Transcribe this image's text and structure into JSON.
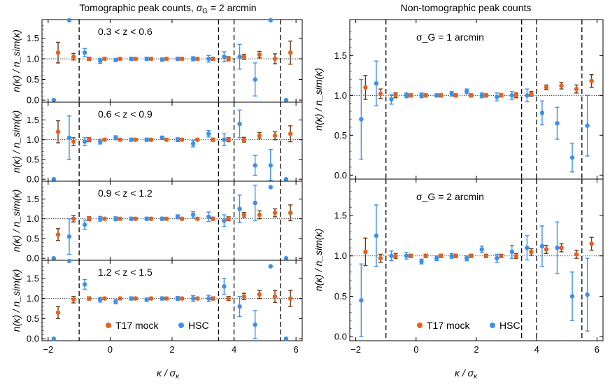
{
  "figure": {
    "left_title": "Tomographic peak counts, σ_G = 2 arcmin",
    "right_title": "Non-tomographic peak counts",
    "ylabel": "n(κ) / n_sim(κ)",
    "xlabel": "κ / σ_κ",
    "legend": {
      "t17": "T17 mock",
      "hsc": "HSC"
    }
  },
  "colors": {
    "t17": "#e8601c",
    "t17_err": "#6b3a1a",
    "hsc": "#3f8fe6"
  },
  "chart_data": [
    {
      "type": "scatter",
      "panel": "tomo-1",
      "annotation": "0.3 < z < 0.6",
      "xlim": [
        -2.2,
        6.2
      ],
      "ylim": [
        -0.05,
        1.95
      ],
      "yticks": [
        0.0,
        0.5,
        1.0,
        1.5
      ],
      "xticks": [
        -2,
        0,
        2,
        4,
        6
      ],
      "vlines": [
        -1,
        3.5,
        4,
        5.5
      ],
      "series": [
        {
          "name": "T17 mock",
          "x": [
            -1.75,
            -1.25,
            -0.75,
            -0.25,
            0.25,
            0.75,
            1.25,
            1.75,
            2.25,
            2.75,
            3.25,
            3.75,
            4.25,
            4.75,
            5.25,
            5.75
          ],
          "y": [
            1.15,
            1.05,
            1.0,
            1.0,
            1.0,
            1.0,
            1.0,
            1.0,
            1.0,
            1.0,
            1.0,
            1.0,
            1.05,
            1.1,
            1.0,
            1.15
          ],
          "err": [
            0.25,
            0.08,
            0.04,
            0.03,
            0.03,
            0.03,
            0.03,
            0.03,
            0.03,
            0.03,
            0.04,
            0.05,
            0.06,
            0.08,
            0.12,
            0.28
          ]
        },
        {
          "name": "HSC",
          "x": [
            -1.75,
            -1.25,
            -0.75,
            -0.25,
            0.25,
            0.75,
            1.25,
            1.75,
            2.25,
            2.75,
            3.25,
            3.75,
            4.25,
            4.75,
            5.25,
            5.75
          ],
          "y": [
            0.0,
            1.95,
            1.15,
            0.95,
            0.97,
            1.0,
            1.0,
            0.98,
            1.0,
            1.0,
            1.0,
            1.05,
            1.05,
            0.5,
            1.95,
            0.0
          ],
          "err": [
            0.0,
            0.0,
            0.1,
            0.06,
            0.04,
            0.04,
            0.04,
            0.04,
            0.04,
            0.05,
            0.08,
            0.12,
            0.3,
            0.4,
            0.0,
            0.0
          ]
        }
      ]
    },
    {
      "type": "scatter",
      "panel": "tomo-2",
      "annotation": "0.6 < z < 0.9",
      "xlim": [
        -2.2,
        6.2
      ],
      "ylim": [
        -0.05,
        1.95
      ],
      "yticks": [
        0.0,
        0.5,
        1.0,
        1.5
      ],
      "xticks": [
        -2,
        0,
        2,
        4,
        6
      ],
      "vlines": [
        -1,
        3.5,
        4,
        5.5
      ],
      "series": [
        {
          "name": "T17 mock",
          "x": [
            -1.75,
            -1.25,
            -0.75,
            -0.25,
            0.25,
            0.75,
            1.25,
            1.75,
            2.25,
            2.75,
            3.25,
            3.75,
            4.25,
            4.75,
            5.25,
            5.75
          ],
          "y": [
            1.2,
            0.95,
            1.0,
            1.0,
            1.0,
            1.0,
            1.0,
            1.0,
            1.0,
            1.0,
            1.0,
            1.0,
            1.0,
            1.1,
            1.1,
            1.15
          ],
          "err": [
            0.28,
            0.1,
            0.05,
            0.03,
            0.03,
            0.03,
            0.03,
            0.03,
            0.03,
            0.03,
            0.04,
            0.05,
            0.06,
            0.08,
            0.1,
            0.2
          ]
        },
        {
          "name": "HSC",
          "x": [
            -1.75,
            -1.25,
            -0.75,
            -0.25,
            0.25,
            0.75,
            1.25,
            1.75,
            2.25,
            2.75,
            3.25,
            3.75,
            4.25,
            4.75,
            5.25,
            5.75
          ],
          "y": [
            0.0,
            1.05,
            0.95,
            0.95,
            1.05,
            1.0,
            1.0,
            1.05,
            1.0,
            0.9,
            1.15,
            1.0,
            1.4,
            0.35,
            0.35,
            0.0
          ],
          "err": [
            0.0,
            0.55,
            0.1,
            0.06,
            0.05,
            0.04,
            0.04,
            0.04,
            0.05,
            0.08,
            0.08,
            0.15,
            0.35,
            0.25,
            0.4,
            0.0
          ]
        }
      ]
    },
    {
      "type": "scatter",
      "panel": "tomo-3",
      "annotation": "0.9 < z < 1.2",
      "xlim": [
        -2.2,
        6.2
      ],
      "ylim": [
        -0.05,
        1.95
      ],
      "yticks": [
        0.0,
        0.5,
        1.0,
        1.5
      ],
      "xticks": [
        -2,
        0,
        2,
        4,
        6
      ],
      "vlines": [
        -1,
        3.5,
        4,
        5.5
      ],
      "series": [
        {
          "name": "T17 mock",
          "x": [
            -1.75,
            -1.25,
            -0.75,
            -0.25,
            0.25,
            0.75,
            1.25,
            1.75,
            2.25,
            2.75,
            3.25,
            3.75,
            4.25,
            4.75,
            5.25,
            5.75
          ],
          "y": [
            0.6,
            1.0,
            1.0,
            1.0,
            1.0,
            1.0,
            1.0,
            1.0,
            1.0,
            1.0,
            1.0,
            1.0,
            1.1,
            1.1,
            1.15,
            1.15
          ],
          "err": [
            0.15,
            0.08,
            0.05,
            0.03,
            0.03,
            0.03,
            0.03,
            0.03,
            0.03,
            0.03,
            0.04,
            0.05,
            0.06,
            0.1,
            0.1,
            0.2
          ]
        },
        {
          "name": "HSC",
          "x": [
            -1.75,
            -1.25,
            -0.75,
            -0.25,
            0.25,
            0.75,
            1.25,
            1.75,
            2.25,
            2.75,
            3.25,
            3.75,
            4.25,
            4.75,
            5.25,
            5.75
          ],
          "y": [
            0.0,
            0.55,
            0.85,
            1.0,
            1.0,
            1.0,
            1.0,
            1.0,
            1.05,
            1.1,
            1.05,
            0.95,
            1.25,
            1.4,
            1.8,
            0.0
          ],
          "err": [
            0.0,
            0.45,
            0.12,
            0.06,
            0.05,
            0.04,
            0.04,
            0.04,
            0.05,
            0.08,
            0.12,
            0.15,
            0.35,
            0.45,
            0.0,
            0.0
          ]
        }
      ]
    },
    {
      "type": "scatter",
      "panel": "tomo-4",
      "annotation": "1.2 < z < 1.5",
      "xlim": [
        -2.2,
        6.2
      ],
      "ylim": [
        -0.05,
        1.95
      ],
      "yticks": [
        0.0,
        0.5,
        1.0,
        1.5
      ],
      "xticks": [
        -2,
        0,
        2,
        4,
        6
      ],
      "vlines": [
        -1,
        3.5,
        4,
        5.5
      ],
      "series": [
        {
          "name": "T17 mock",
          "x": [
            -1.75,
            -1.25,
            -0.75,
            -0.25,
            0.25,
            0.75,
            1.25,
            1.75,
            2.25,
            2.75,
            3.25,
            3.75,
            4.25,
            4.75,
            5.25,
            5.75
          ],
          "y": [
            0.65,
            0.97,
            1.0,
            1.0,
            1.0,
            1.0,
            1.0,
            1.0,
            1.0,
            1.0,
            1.0,
            1.0,
            1.05,
            1.1,
            1.05,
            1.0
          ],
          "err": [
            0.15,
            0.08,
            0.04,
            0.03,
            0.03,
            0.03,
            0.03,
            0.03,
            0.03,
            0.03,
            0.04,
            0.05,
            0.08,
            0.1,
            0.15,
            0.2
          ]
        },
        {
          "name": "HSC",
          "x": [
            -1.75,
            -1.25,
            -0.75,
            -0.25,
            0.25,
            0.75,
            1.25,
            1.75,
            2.25,
            2.75,
            3.25,
            3.75,
            4.25,
            4.75,
            5.25,
            5.75
          ],
          "y": [
            0.0,
            1.95,
            1.35,
            0.97,
            0.92,
            1.0,
            0.97,
            1.0,
            1.0,
            1.0,
            1.0,
            1.3,
            0.8,
            0.35,
            1.8,
            0.0
          ],
          "err": [
            0.0,
            0.0,
            0.12,
            0.06,
            0.05,
            0.04,
            0.04,
            0.04,
            0.05,
            0.07,
            0.08,
            0.2,
            0.25,
            0.35,
            0.0,
            0.0
          ]
        }
      ]
    },
    {
      "type": "scatter",
      "panel": "nontomo-1",
      "annotation": "σ_G = 1 arcmin",
      "xlim": [
        -2.2,
        6.2
      ],
      "ylim": [
        -0.05,
        1.95
      ],
      "yticks": [
        0.0,
        0.5,
        1.0,
        1.5
      ],
      "xticks": [
        -2,
        0,
        2,
        4,
        6
      ],
      "vlines": [
        -1,
        3.5,
        4,
        5.5
      ],
      "series": [
        {
          "name": "T17 mock",
          "x": [
            -1.75,
            -1.25,
            -0.75,
            -0.25,
            0.25,
            0.75,
            1.25,
            1.75,
            2.25,
            2.75,
            3.25,
            3.75,
            4.25,
            4.75,
            5.25,
            5.75
          ],
          "y": [
            1.1,
            1.02,
            1.0,
            1.0,
            1.0,
            1.0,
            1.0,
            1.0,
            1.0,
            1.0,
            1.0,
            1.02,
            1.1,
            1.12,
            1.08,
            1.18
          ],
          "err": [
            0.15,
            0.06,
            0.03,
            0.02,
            0.02,
            0.02,
            0.02,
            0.02,
            0.02,
            0.02,
            0.03,
            0.03,
            0.03,
            0.04,
            0.05,
            0.08
          ]
        },
        {
          "name": "HSC",
          "x": [
            -1.75,
            -1.25,
            -0.75,
            -0.25,
            0.25,
            0.75,
            1.25,
            1.75,
            2.25,
            2.75,
            3.25,
            3.75,
            4.25,
            4.75,
            5.25,
            5.75
          ],
          "y": [
            0.7,
            1.15,
            0.95,
            1.0,
            1.0,
            1.0,
            1.02,
            1.05,
            1.0,
            0.98,
            1.0,
            1.0,
            0.78,
            0.65,
            0.22,
            0.62
          ],
          "err": [
            0.5,
            0.28,
            0.06,
            0.03,
            0.03,
            0.02,
            0.03,
            0.03,
            0.03,
            0.05,
            0.05,
            0.08,
            0.15,
            0.2,
            0.18,
            0.38
          ]
        }
      ]
    },
    {
      "type": "scatter",
      "panel": "nontomo-2",
      "annotation": "σ_G = 2 arcmin",
      "xlim": [
        -2.2,
        6.2
      ],
      "ylim": [
        -0.05,
        1.95
      ],
      "yticks": [
        0.0,
        0.5,
        1.0,
        1.5
      ],
      "xticks": [
        -2,
        0,
        2,
        4,
        6
      ],
      "vlines": [
        -1,
        3.5,
        4,
        5.5
      ],
      "series": [
        {
          "name": "T17 mock",
          "x": [
            -1.75,
            -1.25,
            -0.75,
            -0.25,
            0.25,
            0.75,
            1.25,
            1.75,
            2.25,
            2.75,
            3.25,
            3.75,
            4.25,
            4.75,
            5.25,
            5.75
          ],
          "y": [
            1.05,
            0.97,
            1.0,
            1.0,
            1.0,
            1.0,
            1.0,
            1.0,
            1.0,
            1.0,
            1.0,
            1.05,
            1.08,
            1.1,
            1.02,
            1.15
          ],
          "err": [
            0.17,
            0.05,
            0.03,
            0.02,
            0.02,
            0.02,
            0.02,
            0.02,
            0.02,
            0.02,
            0.03,
            0.04,
            0.05,
            0.05,
            0.05,
            0.08
          ]
        },
        {
          "name": "HSC",
          "x": [
            -1.75,
            -1.25,
            -0.75,
            -0.25,
            0.25,
            0.75,
            1.25,
            1.75,
            2.25,
            2.75,
            3.25,
            3.75,
            4.25,
            4.75,
            5.25,
            5.75
          ],
          "y": [
            0.45,
            1.25,
            1.0,
            1.0,
            0.93,
            0.97,
            1.0,
            0.97,
            1.08,
            0.97,
            1.05,
            1.1,
            1.12,
            1.1,
            0.5,
            0.52
          ],
          "err": [
            0.45,
            0.38,
            0.06,
            0.04,
            0.03,
            0.03,
            0.03,
            0.03,
            0.04,
            0.05,
            0.08,
            0.15,
            0.25,
            0.32,
            0.3,
            0.45
          ]
        }
      ]
    }
  ]
}
